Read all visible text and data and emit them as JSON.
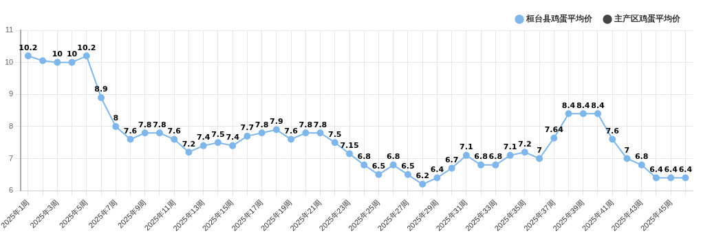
{
  "chart_data": {
    "type": "line",
    "categories": [
      "2025年1周",
      null,
      "2025年3周",
      null,
      "2025年5周",
      null,
      "2025年7周",
      null,
      "2025年9周",
      null,
      "2025年11周",
      null,
      "2025年13周",
      null,
      "2025年15周",
      null,
      "2025年17周",
      null,
      "2025年19周",
      null,
      "2025年21周",
      null,
      "2025年23周",
      null,
      "2025年25周",
      null,
      "2025年27周",
      null,
      "2025年29周",
      null,
      "2025年31周",
      null,
      "2025年33周",
      null,
      "2025年35周",
      null,
      "2025年37周",
      null,
      "2025年39周",
      null,
      "2025年41周",
      null,
      "2025年43周",
      null,
      "2025年45周",
      null
    ],
    "series": [
      {
        "name": "桓台县鸡蛋平均价",
        "color": "#7eb6ea",
        "values": [
          10.2,
          10.05,
          10,
          10,
          10.2,
          8.9,
          8,
          7.6,
          7.8,
          7.8,
          7.6,
          7.2,
          7.4,
          7.5,
          7.4,
          7.7,
          7.8,
          7.9,
          7.6,
          7.8,
          7.8,
          7.5,
          7.15,
          6.8,
          6.5,
          6.8,
          6.5,
          6.2,
          6.4,
          6.7,
          7.1,
          6.8,
          6.8,
          7.1,
          7.2,
          7,
          7.64,
          8.4,
          8.4,
          8.4,
          7.6,
          7,
          6.8,
          6.4,
          6.4,
          6.4
        ],
        "value_labels": [
          "10.2",
          null,
          "10",
          "10",
          "10.2",
          "8.9",
          "8",
          "7.6",
          "7.8",
          "7.8",
          "7.6",
          "7.2",
          "7.4",
          "7.5",
          "7.4",
          "7.7",
          "7.8",
          "7.9",
          "7.6",
          "7.8",
          "7.8",
          "7.5",
          "7.15",
          "6.8",
          "6.5",
          "6.8",
          "6.5",
          "6.2",
          "6.4",
          "6.7",
          "7.1",
          "6.8",
          "6.8",
          "7.1",
          "7.2",
          "7",
          "7.64",
          "8.4",
          "8.4",
          "8.4",
          "7.6",
          "7",
          "6.8",
          "6.4",
          "6.4",
          "6.4"
        ]
      },
      {
        "name": "主产区鸡蛋平均价",
        "color": "#444444",
        "values": [
          null,
          null,
          null,
          null,
          null,
          null,
          null,
          null,
          null,
          null,
          null,
          null,
          null,
          null,
          null,
          null,
          null,
          null,
          null,
          null,
          null,
          null,
          null,
          null,
          null,
          null,
          null,
          null,
          null,
          null,
          null,
          null,
          null,
          null,
          null,
          null,
          null,
          null,
          null,
          null,
          null,
          null,
          null,
          null,
          null,
          null
        ]
      }
    ],
    "ylim": [
      6,
      11
    ],
    "yticks": [
      6,
      7,
      8,
      9,
      10,
      11
    ],
    "grid": true,
    "legend": "top right",
    "marker": "circle",
    "line_style": "solid"
  }
}
